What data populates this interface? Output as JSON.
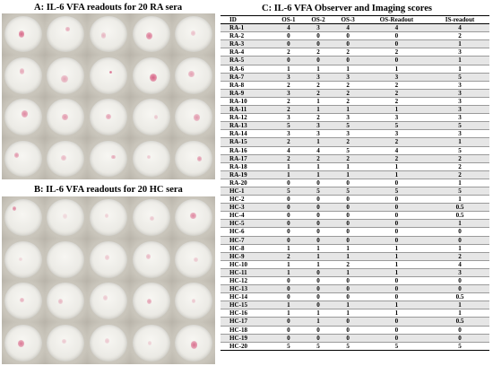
{
  "panel_a": {
    "title": "A: IL-6 VFA readouts for 20 RA sera"
  },
  "panel_b": {
    "title": "B: IL-6 VFA readouts for 20 HC sera"
  },
  "panel_c": {
    "title": "C: IL-6 VFA Observer and Imaging scores",
    "columns": [
      "ID",
      "OS-1",
      "OS-2",
      "OS-3",
      "OS-Readout",
      "IS-readout"
    ],
    "rows": [
      [
        "RA-1",
        "4",
        "3",
        "4",
        "4",
        "4"
      ],
      [
        "RA-2",
        "0",
        "0",
        "0",
        "0",
        "2"
      ],
      [
        "RA-3",
        "0",
        "0",
        "0",
        "0",
        "1"
      ],
      [
        "RA-4",
        "2",
        "2",
        "2",
        "2",
        "3"
      ],
      [
        "RA-5",
        "0",
        "0",
        "0",
        "0",
        "1"
      ],
      [
        "RA-6",
        "1",
        "1",
        "1",
        "1",
        "1"
      ],
      [
        "RA-7",
        "3",
        "3",
        "3",
        "3",
        "5"
      ],
      [
        "RA-8",
        "2",
        "2",
        "2",
        "2",
        "3"
      ],
      [
        "RA-9",
        "3",
        "2",
        "2",
        "2",
        "3"
      ],
      [
        "RA-10",
        "2",
        "1",
        "2",
        "2",
        "3"
      ],
      [
        "RA-11",
        "2",
        "1",
        "1",
        "1",
        "3"
      ],
      [
        "RA-12",
        "3",
        "2",
        "3",
        "3",
        "3"
      ],
      [
        "RA-13",
        "5",
        "3",
        "5",
        "5",
        "5"
      ],
      [
        "RA-14",
        "3",
        "3",
        "3",
        "3",
        "3"
      ],
      [
        "RA-15",
        "2",
        "1",
        "2",
        "2",
        "1"
      ],
      [
        "RA-16",
        "4",
        "4",
        "5",
        "4",
        "5"
      ],
      [
        "RA-17",
        "2",
        "2",
        "2",
        "2",
        "2"
      ],
      [
        "RA-18",
        "1",
        "1",
        "1",
        "1",
        "2"
      ],
      [
        "RA-19",
        "1",
        "1",
        "1",
        "1",
        "2"
      ],
      [
        "RA-20",
        "0",
        "0",
        "0",
        "0",
        "1"
      ],
      [
        "HC-1",
        "5",
        "5",
        "5",
        "5",
        "5"
      ],
      [
        "HC-2",
        "0",
        "0",
        "0",
        "0",
        "1"
      ],
      [
        "HC-3",
        "0",
        "0",
        "0",
        "0",
        "0.5"
      ],
      [
        "HC-4",
        "0",
        "0",
        "0",
        "0",
        "0.5"
      ],
      [
        "HC-5",
        "0",
        "0",
        "0",
        "0",
        "1"
      ],
      [
        "HC-6",
        "0",
        "0",
        "0",
        "0",
        "0"
      ],
      [
        "HC-7",
        "0",
        "0",
        "0",
        "0",
        "0"
      ],
      [
        "HC-8",
        "1",
        "1",
        "1",
        "1",
        "1"
      ],
      [
        "HC-9",
        "2",
        "1",
        "1",
        "1",
        "2"
      ],
      [
        "HC-10",
        "1",
        "1",
        "2",
        "1",
        "4"
      ],
      [
        "HC-11",
        "1",
        "0",
        "1",
        "1",
        "3"
      ],
      [
        "HC-12",
        "0",
        "0",
        "0",
        "0",
        "0"
      ],
      [
        "HC-13",
        "0",
        "0",
        "0",
        "0",
        "0"
      ],
      [
        "HC-14",
        "0",
        "0",
        "0",
        "0",
        "0.5"
      ],
      [
        "HC-15",
        "1",
        "0",
        "1",
        "1",
        "1"
      ],
      [
        "HC-16",
        "1",
        "1",
        "1",
        "1",
        "1"
      ],
      [
        "HC-17",
        "0",
        "1",
        "0",
        "0",
        "0.5"
      ],
      [
        "HC-18",
        "0",
        "0",
        "0",
        "0",
        "0"
      ],
      [
        "HC-19",
        "0",
        "0",
        "0",
        "0",
        "0"
      ],
      [
        "HC-20",
        "5",
        "5",
        "5",
        "5",
        "5"
      ]
    ]
  },
  "colors": {
    "spot": "#d35a7e",
    "disc": "#eceae5",
    "row_shade": "#e6e6e6"
  }
}
